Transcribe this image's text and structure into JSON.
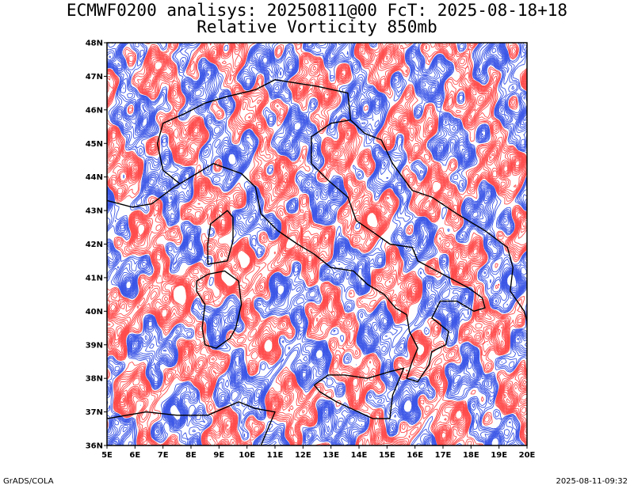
{
  "title": {
    "line1": "ECMWF0200 analisys: 20250811@00 FcT: 2025-08-18+18",
    "line2": "Relative Vorticity 850mb"
  },
  "map": {
    "lon_range": [
      5,
      20
    ],
    "lat_range": [
      36,
      48
    ],
    "lon_labels": [
      "5E",
      "6E",
      "7E",
      "8E",
      "9E",
      "10E",
      "11E",
      "12E",
      "13E",
      "14E",
      "15E",
      "16E",
      "17E",
      "18E",
      "19E",
      "20E"
    ],
    "lat_labels": [
      "36N",
      "37N",
      "38N",
      "39N",
      "40N",
      "41N",
      "42N",
      "43N",
      "44N",
      "45N",
      "46N",
      "47N",
      "48N"
    ],
    "colors": {
      "positive": "#3a55e6",
      "negative": "#ff4a4a",
      "coast": "#000000",
      "frame": "#000000"
    }
  },
  "footer": {
    "left": "GrADS/COLA",
    "right": "2025-08-11-09:32"
  }
}
